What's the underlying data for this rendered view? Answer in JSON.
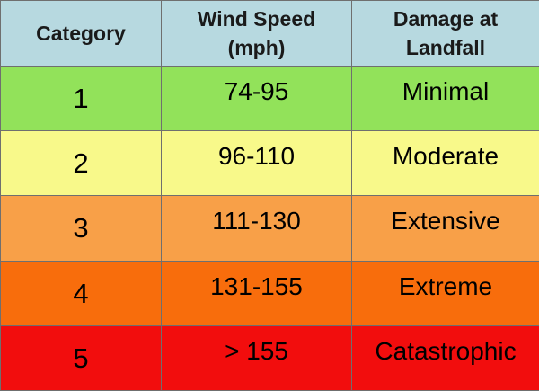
{
  "table": {
    "header_bg": "#b7d9e0",
    "headers": [
      {
        "lines": [
          "Category"
        ]
      },
      {
        "lines": [
          "Wind Speed",
          "(mph)"
        ]
      },
      {
        "lines": [
          "Damage at",
          "Landfall"
        ]
      }
    ],
    "rows": [
      {
        "category": "1",
        "wind_speed": "74-95",
        "damage": "Minimal",
        "color": "#92e25a"
      },
      {
        "category": "2",
        "wind_speed": "96-110",
        "damage": "Moderate",
        "color": "#f8f98a"
      },
      {
        "category": "3",
        "wind_speed": "111-130",
        "damage": "Extensive",
        "color": "#f8a048"
      },
      {
        "category": "4",
        "wind_speed": "131-155",
        "damage": "Extreme",
        "color": "#f86d0c"
      },
      {
        "category": "5",
        "wind_speed": "> 155",
        "damage": "Catastrophic",
        "color": "#f20d0d"
      }
    ]
  }
}
